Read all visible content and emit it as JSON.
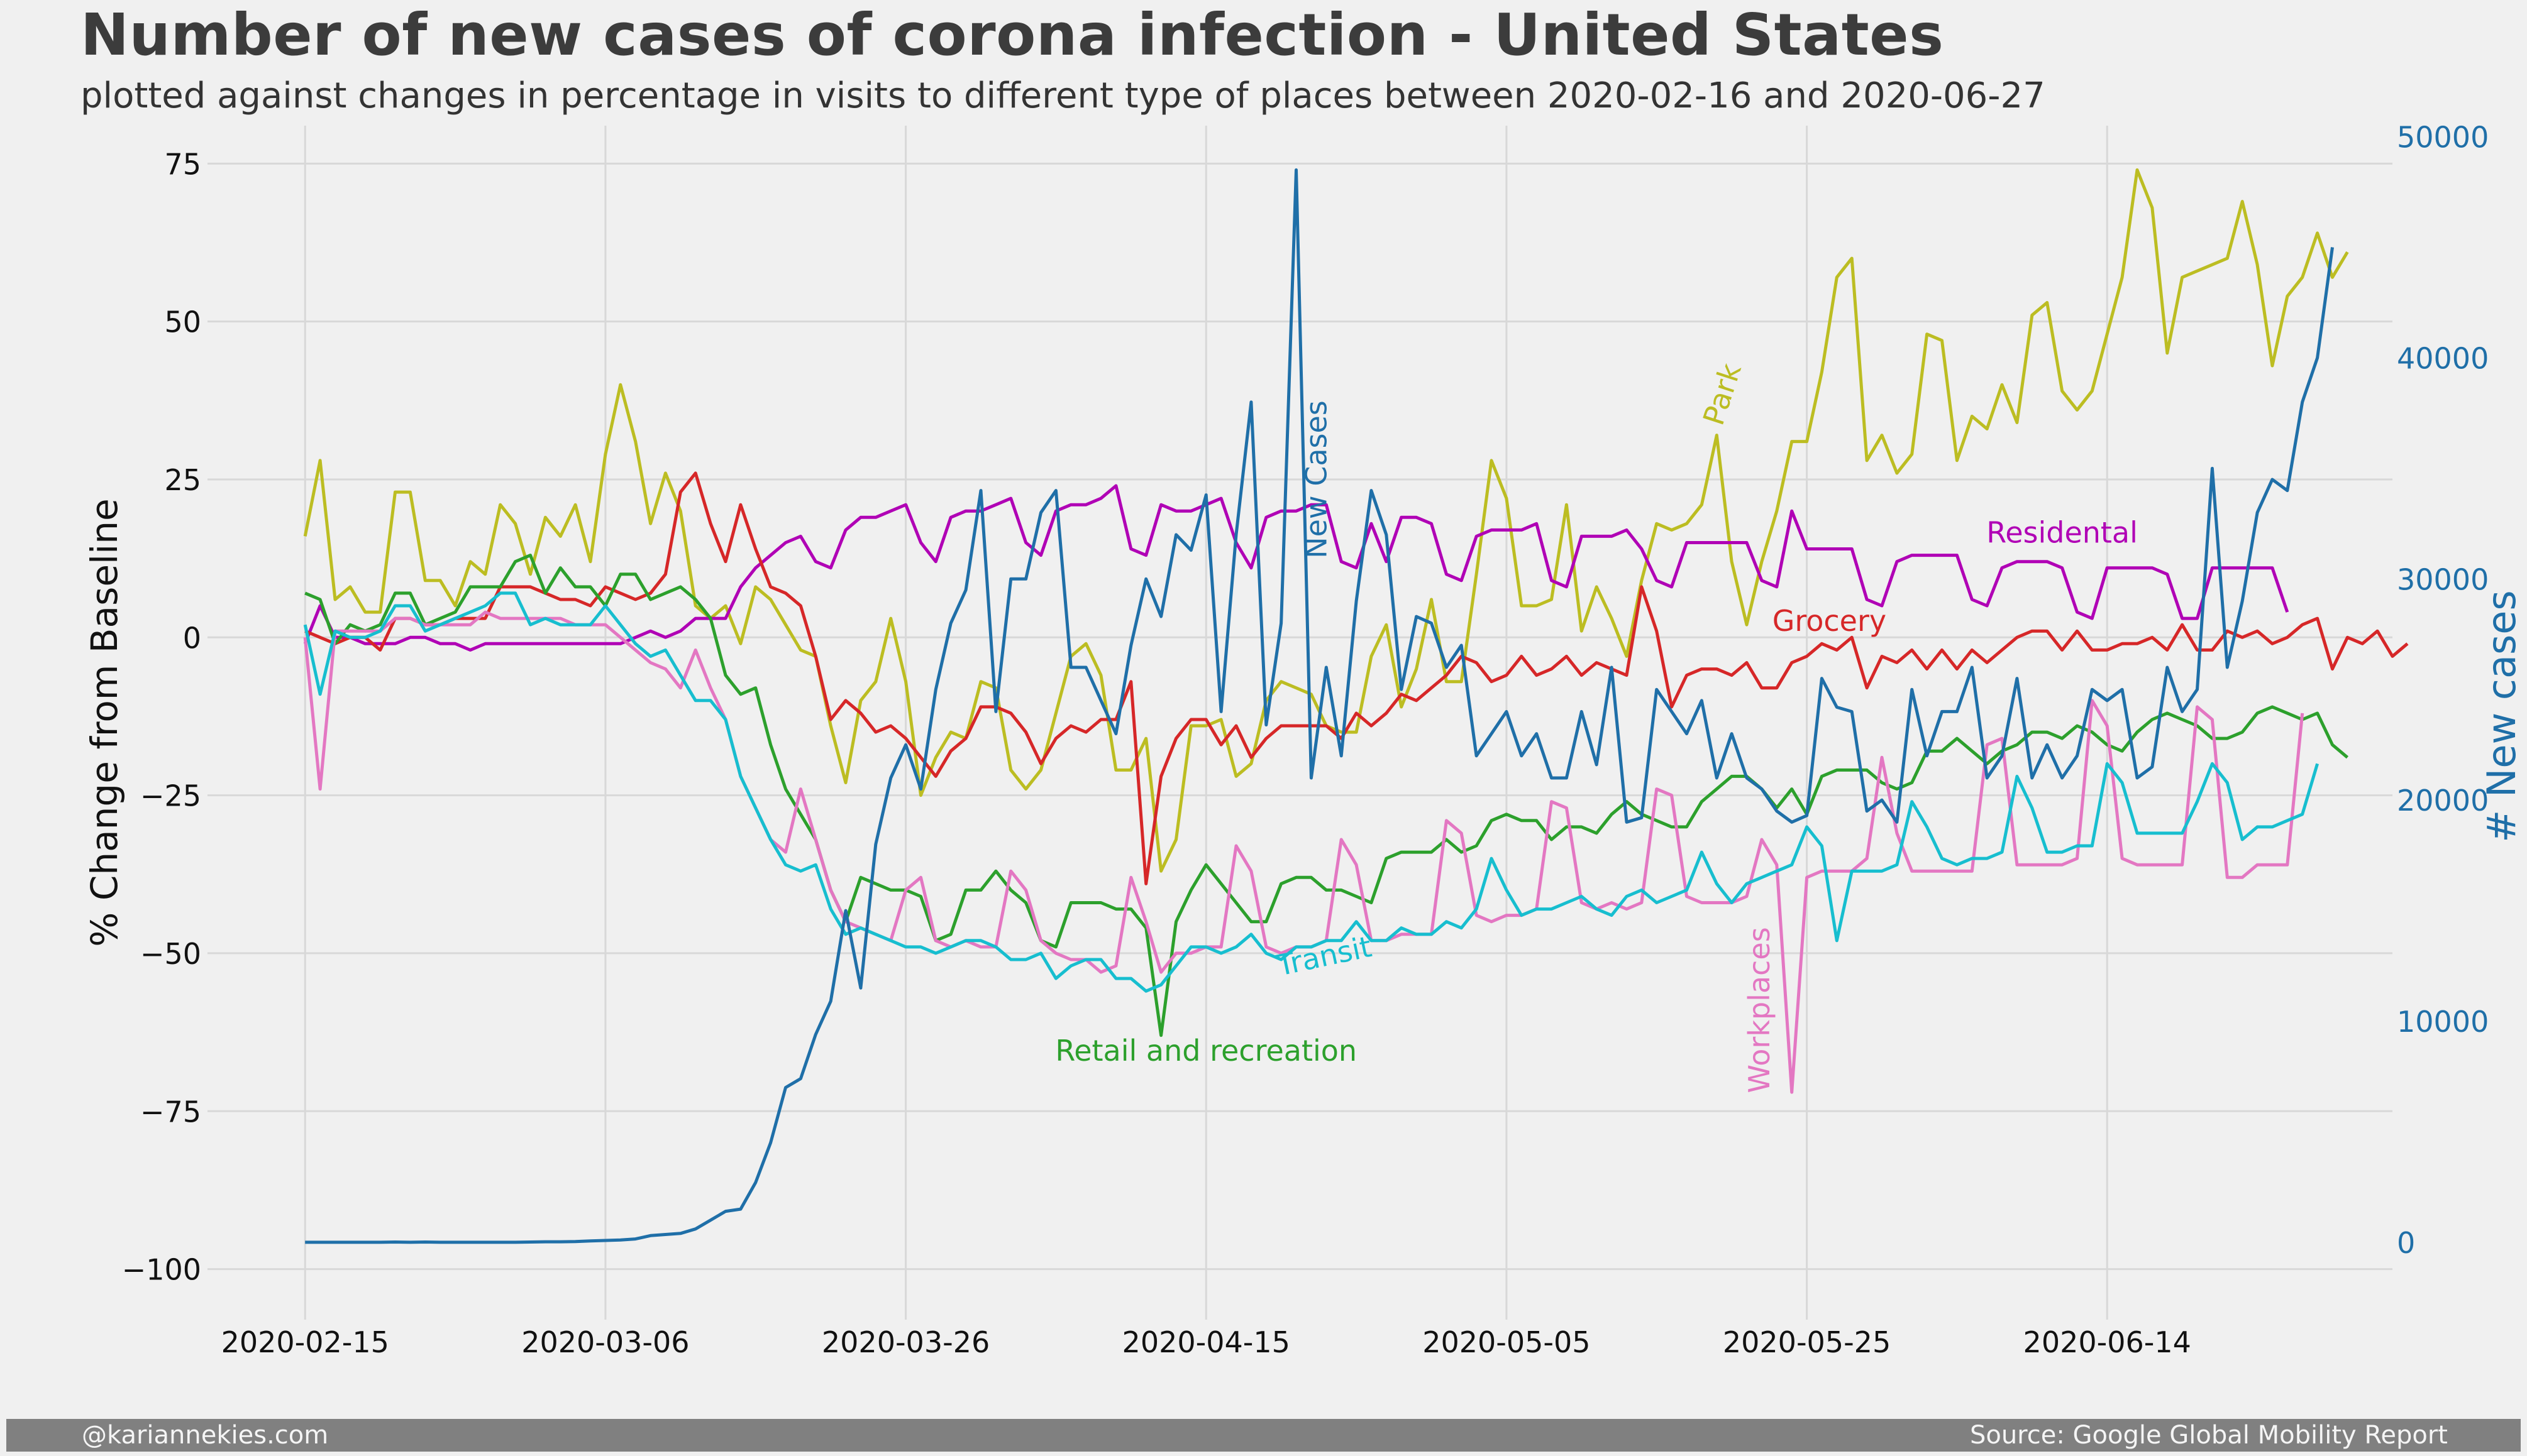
{
  "title": "Number of new cases of corona infection - United States",
  "subtitle": "plotted against changes in percentage in visits to different type of places between 2020-02-16 and 2020-06-27",
  "footer": {
    "left": "@kariannekies.com",
    "right": "Source: Google Global Mobility Report"
  },
  "colors": {
    "background": "#f0f0f0",
    "grid": "#d8d8d8",
    "new_cases": "#1f6fa8",
    "park": "#bcbd22",
    "residential": "#b000b5",
    "grocery": "#d62728",
    "retail": "#2ca02c",
    "transit": "#17becf",
    "workplaces": "#e377c2"
  },
  "chart_data": {
    "type": "line",
    "xlabel": "",
    "ylabel": "% Change from Baseline",
    "ylabel_right": "# New cases",
    "ylim": [
      -108,
      81
    ],
    "ylim_right": [
      -3500,
      50500
    ],
    "yticks": [
      -100,
      -75,
      -50,
      -25,
      0,
      25,
      50,
      75
    ],
    "yticks_right": [
      0,
      10000,
      20000,
      30000,
      40000,
      50000
    ],
    "yticklabels": [
      "−100",
      "−75",
      "−50",
      "−25",
      "0",
      "25",
      "50",
      "75"
    ],
    "yticklabels_right": [
      "0",
      "10000",
      "20000",
      "30000",
      "40000",
      "50000"
    ],
    "xlim_days": [
      -6.5,
      139
    ],
    "xticks": [
      0,
      20,
      40,
      60,
      80,
      100,
      120
    ],
    "xticklabels": [
      "2020-02-15",
      "2020-03-06",
      "2020-03-26",
      "2020-04-15",
      "2020-05-05",
      "2020-05-25",
      "2020-06-14"
    ],
    "x_start": "2020-02-15",
    "grid": true,
    "annotations": [
      {
        "text": "New Cases",
        "series": "new_cases",
        "x": 68,
        "y": 25,
        "rotate": -90
      },
      {
        "text": "Park",
        "series": "park",
        "x": 95,
        "y": 38,
        "rotate": -72
      },
      {
        "text": "Residental",
        "series": "residential",
        "x": 117,
        "y": 15,
        "rotate": 0
      },
      {
        "text": "Grocery",
        "series": "grocery",
        "x": 101.5,
        "y": 1,
        "rotate": 0
      },
      {
        "text": "Retail and recreation",
        "series": "retail",
        "x": 60,
        "y": -67,
        "rotate": 0
      },
      {
        "text": "Transit",
        "series": "transit",
        "x": 68,
        "y": -52,
        "rotate": -12
      },
      {
        "text": "Workplaces",
        "series": "workplaces",
        "x": 97.5,
        "y": -59,
        "rotate": -90
      }
    ],
    "series": [
      {
        "key": "park",
        "axis": "left",
        "values": [
          16,
          28,
          6,
          8,
          4,
          4,
          23,
          23,
          9,
          9,
          5,
          12,
          10,
          21,
          18,
          10,
          19,
          16,
          21,
          12,
          29,
          40,
          31,
          18,
          26,
          20,
          5,
          3,
          5,
          -1,
          8,
          6,
          2,
          -2,
          -3,
          -14,
          -23,
          -10,
          -7,
          3,
          -7,
          -25,
          -19,
          -15,
          -16,
          -7,
          -8,
          -21,
          -24,
          -21,
          -12,
          -3,
          -1,
          -6,
          -21,
          -21,
          -16,
          -37,
          -32,
          -14,
          -14,
          -13,
          -22,
          -20,
          -10,
          -7,
          -8,
          -9,
          -14,
          -15,
          -15,
          -3,
          2,
          -11,
          -5,
          6,
          -7,
          -7,
          10,
          28,
          22,
          5,
          5,
          6,
          21,
          1,
          8,
          3,
          -3,
          9,
          18,
          17,
          18,
          21,
          32,
          12,
          2,
          12,
          20,
          31,
          31,
          42,
          57,
          60,
          28,
          32,
          26,
          29,
          48,
          47,
          28,
          35,
          33,
          40,
          34,
          51,
          53,
          39,
          36,
          39,
          48,
          57,
          74,
          68,
          45,
          57,
          58,
          59,
          60,
          69,
          59,
          43,
          54,
          57,
          64,
          57,
          61
        ]
      },
      {
        "key": "residential",
        "axis": "left",
        "values": [
          -1,
          5,
          0,
          0,
          -1,
          -1,
          -1,
          0,
          0,
          -1,
          -1,
          -2,
          -1,
          -1,
          -1,
          -1,
          -1,
          -1,
          -1,
          -1,
          -1,
          -1,
          0,
          1,
          0,
          1,
          3,
          3,
          3,
          8,
          11,
          13,
          15,
          16,
          12,
          11,
          17,
          19,
          19,
          20,
          21,
          15,
          12,
          19,
          20,
          20,
          21,
          22,
          15,
          13,
          20,
          21,
          21,
          22,
          24,
          14,
          13,
          21,
          20,
          20,
          21,
          22,
          15,
          11,
          19,
          20,
          20,
          21,
          21,
          12,
          11,
          18,
          12,
          19,
          19,
          18,
          10,
          9,
          16,
          17,
          17,
          17,
          18,
          9,
          8,
          16,
          16,
          16,
          17,
          14,
          9,
          8,
          15,
          15,
          15,
          15,
          15,
          9,
          8,
          20,
          14,
          14,
          14,
          14,
          6,
          5,
          12,
          13,
          13,
          13,
          13,
          6,
          5,
          11,
          12,
          12,
          12,
          11,
          4,
          3,
          11,
          11,
          11,
          11,
          10,
          3,
          3,
          11,
          11,
          11,
          11,
          11,
          4
        ]
      },
      {
        "key": "grocery",
        "axis": "left",
        "values": [
          1,
          0,
          -1,
          0,
          0,
          -2,
          3,
          3,
          2,
          2,
          3,
          3,
          3,
          8,
          8,
          8,
          7,
          6,
          6,
          5,
          8,
          7,
          6,
          7,
          10,
          23,
          26,
          18,
          12,
          21,
          14,
          8,
          7,
          5,
          -3,
          -13,
          -10,
          -12,
          -15,
          -14,
          -16,
          -19,
          -22,
          -18,
          -16,
          -11,
          -11,
          -12,
          -15,
          -20,
          -16,
          -14,
          -15,
          -13,
          -13,
          -7,
          -39,
          -22,
          -16,
          -13,
          -13,
          -17,
          -14,
          -19,
          -16,
          -14,
          -14,
          -14,
          -14,
          -16,
          -12,
          -14,
          -12,
          -9,
          -10,
          -8,
          -6,
          -3,
          -4,
          -7,
          -6,
          -3,
          -6,
          -5,
          -3,
          -6,
          -4,
          -5,
          -6,
          8,
          1,
          -11,
          -6,
          -5,
          -5,
          -6,
          -4,
          -8,
          -8,
          -4,
          -3,
          -1,
          -2,
          0,
          -8,
          -3,
          -4,
          -2,
          -5,
          -2,
          -5,
          -2,
          -4,
          -2,
          0,
          1,
          1,
          -2,
          1,
          -2,
          -2,
          -1,
          -1,
          0,
          -2,
          2,
          -2,
          -2,
          1,
          0,
          1,
          -1,
          0,
          2,
          3,
          -5,
          0,
          -1,
          1,
          -3,
          -1
        ]
      },
      {
        "key": "retail",
        "axis": "left",
        "values": [
          7,
          6,
          -1,
          2,
          1,
          2,
          7,
          7,
          2,
          3,
          4,
          8,
          8,
          8,
          12,
          13,
          7,
          11,
          8,
          8,
          5,
          10,
          10,
          6,
          7,
          8,
          6,
          3,
          -6,
          -9,
          -8,
          -17,
          -24,
          -28,
          -32,
          -40,
          -45,
          -38,
          -39,
          -40,
          -40,
          -41,
          -48,
          -47,
          -40,
          -40,
          -37,
          -40,
          -42,
          -48,
          -49,
          -42,
          -42,
          -42,
          -43,
          -43,
          -46,
          -63,
          -45,
          -40,
          -36,
          -39,
          -42,
          -45,
          -45,
          -39,
          -38,
          -38,
          -40,
          -40,
          -41,
          -42,
          -35,
          -34,
          -34,
          -34,
          -32,
          -34,
          -33,
          -29,
          -28,
          -29,
          -29,
          -32,
          -30,
          -30,
          -31,
          -28,
          -26,
          -28,
          -29,
          -30,
          -30,
          -26,
          -24,
          -22,
          -22,
          -24,
          -27,
          -24,
          -28,
          -22,
          -21,
          -21,
          -21,
          -23,
          -24,
          -23,
          -18,
          -18,
          -16,
          -18,
          -20,
          -18,
          -17,
          -15,
          -15,
          -16,
          -14,
          -15,
          -17,
          -18,
          -15,
          -13,
          -12,
          -13,
          -14,
          -16,
          -16,
          -15,
          -12,
          -11,
          -12,
          -13,
          -12,
          -17,
          -19
        ]
      },
      {
        "key": "transit",
        "axis": "left",
        "values": [
          2,
          -9,
          1,
          0,
          0,
          1,
          5,
          5,
          1,
          2,
          3,
          4,
          5,
          7,
          7,
          2,
          3,
          2,
          2,
          2,
          5,
          2,
          -1,
          -3,
          -2,
          -6,
          -10,
          -10,
          -13,
          -22,
          -27,
          -32,
          -36,
          -37,
          -36,
          -43,
          -47,
          -46,
          -47,
          -48,
          -49,
          -49,
          -50,
          -49,
          -48,
          -48,
          -49,
          -51,
          -51,
          -50,
          -54,
          -52,
          -51,
          -51,
          -54,
          -54,
          -56,
          -55,
          -52,
          -49,
          -49,
          -50,
          -49,
          -47,
          -50,
          -51,
          -49,
          -49,
          -48,
          -48,
          -45,
          -48,
          -48,
          -46,
          -47,
          -47,
          -45,
          -46,
          -43,
          -35,
          -40,
          -44,
          -43,
          -43,
          -42,
          -41,
          -43,
          -44,
          -41,
          -40,
          -42,
          -41,
          -40,
          -34,
          -39,
          -42,
          -39,
          -38,
          -37,
          -36,
          -30,
          -33,
          -48,
          -37,
          -37,
          -37,
          -36,
          -26,
          -30,
          -35,
          -36,
          -35,
          -35,
          -34,
          -22,
          -27,
          -34,
          -34,
          -33,
          -33,
          -20,
          -23,
          -31,
          -31,
          -31,
          -31,
          -26,
          -20,
          -23,
          -32,
          -30,
          -30,
          -29,
          -28,
          -20
        ]
      },
      {
        "key": "workplaces",
        "axis": "left",
        "values": [
          0,
          -24,
          1,
          1,
          1,
          1,
          3,
          3,
          2,
          2,
          2,
          2,
          4,
          3,
          3,
          3,
          3,
          3,
          2,
          2,
          2,
          0,
          -2,
          -4,
          -5,
          -8,
          -2,
          -8,
          -13,
          -22,
          -27,
          -32,
          -34,
          -24,
          -32,
          -40,
          -45,
          -46,
          -47,
          -48,
          -40,
          -38,
          -48,
          -49,
          -48,
          -49,
          -49,
          -37,
          -40,
          -48,
          -50,
          -51,
          -51,
          -53,
          -52,
          -38,
          -45,
          -53,
          -50,
          -50,
          -49,
          -49,
          -33,
          -37,
          -49,
          -50,
          -49,
          -49,
          -48,
          -32,
          -36,
          -48,
          -48,
          -47,
          -47,
          -47,
          -29,
          -31,
          -44,
          -45,
          -44,
          -44,
          -43,
          -26,
          -27,
          -42,
          -43,
          -42,
          -43,
          -42,
          -24,
          -25,
          -41,
          -42,
          -42,
          -42,
          -41,
          -32,
          -36,
          -72,
          -38,
          -37,
          -37,
          -37,
          -35,
          -19,
          -31,
          -37,
          -37,
          -37,
          -37,
          -37,
          -17,
          -16,
          -36,
          -36,
          -36,
          -36,
          -35,
          -10,
          -14,
          -35,
          -36,
          -36,
          -36,
          -36,
          -11,
          -13,
          -38,
          -38,
          -36,
          -36,
          -36,
          -12
        ]
      },
      {
        "key": "new_cases",
        "axis": "right",
        "values": [
          0,
          0,
          0,
          0,
          0,
          0,
          10,
          0,
          10,
          0,
          0,
          0,
          0,
          0,
          0,
          10,
          20,
          20,
          30,
          60,
          80,
          100,
          150,
          300,
          350,
          400,
          600,
          1000,
          1400,
          1500,
          2700,
          4500,
          7000,
          7400,
          9400,
          10900,
          15000,
          11500,
          18000,
          21000,
          22500,
          20500,
          25000,
          28000,
          29500,
          34000,
          24000,
          30000,
          30000,
          33000,
          34000,
          26000,
          26000,
          24500,
          23000,
          27000,
          30000,
          28300,
          32000,
          31300,
          33800,
          24000,
          32000,
          38000,
          23400,
          28000,
          48500,
          21000,
          26000,
          22000,
          29000,
          34000,
          32000,
          25000,
          28300,
          28000,
          26000,
          27000,
          22000,
          23000,
          24000,
          22000,
          23000,
          21000,
          21000,
          24000,
          21600,
          26000,
          19000,
          19200,
          25000,
          24000,
          23000,
          24500,
          21000,
          23000,
          21000,
          20500,
          19500,
          19000,
          19300,
          25500,
          24200,
          24000,
          19500,
          20000,
          19000,
          25000,
          22000,
          24000,
          24000,
          26000,
          21000,
          22000,
          25500,
          21000,
          22500,
          21000,
          22000,
          25000,
          24500,
          25000,
          21000,
          21500,
          26000,
          24000,
          25000,
          35000,
          26000,
          29000,
          33000,
          34500,
          34000,
          38000,
          40000,
          45000
        ]
      }
    ]
  }
}
